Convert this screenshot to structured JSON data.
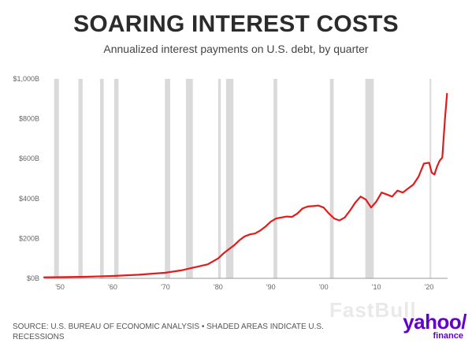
{
  "header": {
    "title": "SOARING INTEREST COSTS",
    "subtitle": "Annualized interest payments on U.S. debt, by quarter"
  },
  "footer": {
    "source_line1": "SOURCE: U.S. BUREAU OF ECONOMIC ANALYSIS • SHADED AREAS INDICATE U.S.",
    "source_line2": "RECESSIONS",
    "watermark": "FastBull",
    "logo_main": "yahoo/",
    "logo_sub": "finance"
  },
  "colors": {
    "line": "#e01c1c",
    "recession": "#dadada",
    "axis": "#999999",
    "logo": "#6001d2"
  },
  "chart_data": {
    "type": "line",
    "title": "SOARING INTEREST COSTS",
    "subtitle": "Annualized interest payments on U.S. debt, by quarter",
    "xlabel": "",
    "ylabel": "",
    "xlim": [
      1947,
      2023.5
    ],
    "ylim": [
      0,
      1000
    ],
    "grid": false,
    "x_ticks": [
      1950,
      1960,
      1970,
      1980,
      1990,
      2000,
      2010,
      2020
    ],
    "x_tick_labels": [
      "'50",
      "'60",
      "'70",
      "'80",
      "'90",
      "'00",
      "'10",
      "'20"
    ],
    "y_ticks": [
      0,
      200,
      400,
      600,
      800,
      1000
    ],
    "y_tick_labels": [
      "$0B",
      "$200B",
      "$400B",
      "$600B",
      "$800B",
      "$1,000B"
    ],
    "recessions": [
      [
        1948.9,
        1949.8
      ],
      [
        1953.5,
        1954.3
      ],
      [
        1957.6,
        1958.3
      ],
      [
        1960.3,
        1961.1
      ],
      [
        1969.9,
        1970.9
      ],
      [
        1973.9,
        1975.2
      ],
      [
        1980.0,
        1980.5
      ],
      [
        1981.5,
        1982.9
      ],
      [
        1990.5,
        1991.2
      ],
      [
        2001.2,
        2001.9
      ],
      [
        2007.9,
        2009.5
      ],
      [
        2020.1,
        2020.4
      ]
    ],
    "series": [
      {
        "x": [
          1947,
          1950,
          1955,
          1960,
          1965,
          1970,
          1973,
          1975,
          1978,
          1980,
          1981,
          1982,
          1983,
          1984,
          1985,
          1986,
          1987,
          1988,
          1989,
          1990,
          1991,
          1992,
          1993,
          1994,
          1995,
          1996,
          1997,
          1998,
          1999,
          2000,
          2001,
          2002,
          2003,
          2004,
          2005,
          2006,
          2007,
          2008,
          2009,
          2010,
          2011,
          2012,
          2013,
          2014,
          2015,
          2016,
          2017,
          2018,
          2019,
          2020,
          2020.5,
          2021,
          2021.5,
          2022,
          2022.5,
          2023,
          2023.4
        ],
        "values": [
          5,
          6,
          8,
          12,
          18,
          28,
          40,
          52,
          70,
          100,
          125,
          145,
          165,
          190,
          210,
          220,
          225,
          240,
          260,
          285,
          300,
          305,
          310,
          308,
          325,
          350,
          360,
          362,
          365,
          355,
          325,
          300,
          290,
          305,
          340,
          380,
          410,
          395,
          355,
          385,
          430,
          420,
          410,
          440,
          430,
          450,
          470,
          510,
          575,
          580,
          530,
          520,
          560,
          590,
          605,
          800,
          925
        ]
      }
    ]
  }
}
